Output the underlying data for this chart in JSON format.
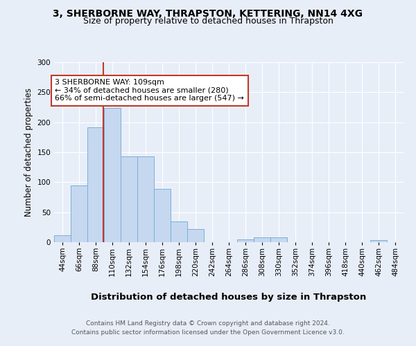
{
  "title": "3, SHERBORNE WAY, THRAPSTON, KETTERING, NN14 4XG",
  "subtitle": "Size of property relative to detached houses in Thrapston",
  "xlabel": "Distribution of detached houses by size in Thrapston",
  "ylabel": "Number of detached properties",
  "footer_line1": "Contains HM Land Registry data © Crown copyright and database right 2024.",
  "footer_line2": "Contains public sector information licensed under the Open Government Licence v3.0.",
  "bar_edges": [
    44,
    66,
    88,
    110,
    132,
    154,
    176,
    198,
    220,
    242,
    264,
    286,
    308,
    330,
    352,
    374,
    396,
    418,
    440,
    462,
    484
  ],
  "bar_heights": [
    12,
    95,
    192,
    224,
    143,
    143,
    89,
    35,
    22,
    0,
    0,
    5,
    8,
    8,
    0,
    0,
    0,
    0,
    0,
    3,
    0
  ],
  "bar_color": "#c5d8f0",
  "bar_edgecolor": "#7bafd4",
  "property_value": 109,
  "vline_color": "#c0392b",
  "annotation_text": "3 SHERBORNE WAY: 109sqm\n← 34% of detached houses are smaller (280)\n66% of semi-detached houses are larger (547) →",
  "annotation_box_edgecolor": "#c0392b",
  "annotation_box_facecolor": "white",
  "ylim": [
    0,
    300
  ],
  "yticks": [
    0,
    50,
    100,
    150,
    200,
    250,
    300
  ],
  "background_color": "#e8eef8",
  "plot_background": "#e8eef8",
  "title_fontsize": 10,
  "subtitle_fontsize": 9,
  "xlabel_fontsize": 9.5,
  "ylabel_fontsize": 8.5,
  "tick_fontsize": 7.5,
  "annotation_fontsize": 8
}
